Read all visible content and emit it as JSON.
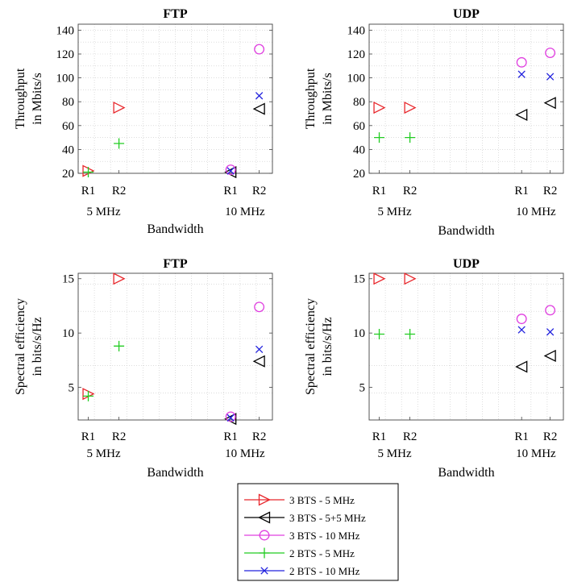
{
  "chart_data": [
    {
      "type": "scatter",
      "title": "FTP",
      "ylabel": [
        "Throughput",
        "in Mbits/s"
      ],
      "xlabel": "Bandwidth",
      "ylim": [
        20,
        145
      ],
      "yticks": [
        20,
        40,
        60,
        80,
        100,
        120,
        140
      ],
      "x_ticks": [
        "R1",
        "R2",
        "R1",
        "R2"
      ],
      "x_groups": [
        "5 MHz",
        "10 MHz"
      ],
      "grid": "dotted",
      "series": [
        {
          "name": "3 BTS - 5 MHz",
          "points": [
            {
              "x": "5 MHz R1",
              "y": 22
            },
            {
              "x": "5 MHz R2",
              "y": 75
            }
          ]
        },
        {
          "name": "3 BTS - 5+5 MHz",
          "points": [
            {
              "x": "10 MHz R1",
              "y": 21
            },
            {
              "x": "10 MHz R2",
              "y": 74
            }
          ]
        },
        {
          "name": "3 BTS - 10 MHz",
          "points": [
            {
              "x": "10 MHz R1",
              "y": 23
            },
            {
              "x": "10 MHz R2",
              "y": 124
            }
          ]
        },
        {
          "name": "2 BTS - 5 MHz",
          "points": [
            {
              "x": "5 MHz R1",
              "y": 21
            },
            {
              "x": "5 MHz R2",
              "y": 45
            }
          ]
        },
        {
          "name": "2 BTS - 10 MHz",
          "points": [
            {
              "x": "10 MHz R1",
              "y": 22
            },
            {
              "x": "10 MHz R2",
              "y": 85
            }
          ]
        }
      ]
    },
    {
      "type": "scatter",
      "title": "UDP",
      "ylabel": [
        "Throughput",
        "in Mbits/s"
      ],
      "xlabel": "Bandwidth",
      "ylim": [
        20,
        145
      ],
      "yticks": [
        20,
        40,
        60,
        80,
        100,
        120,
        140
      ],
      "x_ticks": [
        "R1",
        "R2",
        "R1",
        "R2"
      ],
      "x_groups": [
        "5 MHz",
        "10 MHz"
      ],
      "grid": "dotted",
      "series": [
        {
          "name": "3 BTS - 5 MHz",
          "points": [
            {
              "x": "5 MHz R1",
              "y": 75
            },
            {
              "x": "5 MHz R2",
              "y": 75
            }
          ]
        },
        {
          "name": "3 BTS - 5+5 MHz",
          "points": [
            {
              "x": "10 MHz R1",
              "y": 69
            },
            {
              "x": "10 MHz R2",
              "y": 79
            }
          ]
        },
        {
          "name": "3 BTS - 10 MHz",
          "points": [
            {
              "x": "10 MHz R1",
              "y": 113
            },
            {
              "x": "10 MHz R2",
              "y": 121
            }
          ]
        },
        {
          "name": "2 BTS - 5 MHz",
          "points": [
            {
              "x": "5 MHz R1",
              "y": 50
            },
            {
              "x": "5 MHz R2",
              "y": 50
            }
          ]
        },
        {
          "name": "2 BTS - 10 MHz",
          "points": [
            {
              "x": "10 MHz R1",
              "y": 103
            },
            {
              "x": "10 MHz R2",
              "y": 101
            }
          ]
        }
      ]
    },
    {
      "type": "scatter",
      "title": "FTP",
      "ylabel": [
        "Spectral efficiency",
        "in bits/s/Hz"
      ],
      "xlabel": "Bandwidth",
      "ylim": [
        2,
        15.5
      ],
      "yticks": [
        5,
        10,
        15
      ],
      "x_ticks": [
        "R1",
        "R2",
        "R1",
        "R2"
      ],
      "x_groups": [
        "5 MHz",
        "10 MHz"
      ],
      "grid": "dotted",
      "series": [
        {
          "name": "3 BTS - 5 MHz",
          "points": [
            {
              "x": "5 MHz R1",
              "y": 4.4
            },
            {
              "x": "5 MHz R2",
              "y": 15
            }
          ]
        },
        {
          "name": "3 BTS - 5+5 MHz",
          "points": [
            {
              "x": "10 MHz R1",
              "y": 2.1
            },
            {
              "x": "10 MHz R2",
              "y": 7.4
            }
          ]
        },
        {
          "name": "3 BTS - 10 MHz",
          "points": [
            {
              "x": "10 MHz R1",
              "y": 2.3
            },
            {
              "x": "10 MHz R2",
              "y": 12.4
            }
          ]
        },
        {
          "name": "2 BTS - 5 MHz",
          "points": [
            {
              "x": "5 MHz R1",
              "y": 4.2
            },
            {
              "x": "5 MHz R2",
              "y": 8.8
            }
          ]
        },
        {
          "name": "2 BTS - 10 MHz",
          "points": [
            {
              "x": "10 MHz R1",
              "y": 2.2
            },
            {
              "x": "10 MHz R2",
              "y": 8.5
            }
          ]
        }
      ]
    },
    {
      "type": "scatter",
      "title": "UDP",
      "ylabel": [
        "Spectral efficiency",
        "in bits/s/Hz"
      ],
      "xlabel": "Bandwidth",
      "ylim": [
        2,
        15.5
      ],
      "yticks": [
        5,
        10,
        15
      ],
      "x_ticks": [
        "R1",
        "R2",
        "R1",
        "R2"
      ],
      "x_groups": [
        "5 MHz",
        "10 MHz"
      ],
      "grid": "dotted",
      "series": [
        {
          "name": "3 BTS - 5 MHz",
          "points": [
            {
              "x": "5 MHz R1",
              "y": 15
            },
            {
              "x": "5 MHz R2",
              "y": 15
            }
          ]
        },
        {
          "name": "3 BTS - 5+5 MHz",
          "points": [
            {
              "x": "10 MHz R1",
              "y": 6.9
            },
            {
              "x": "10 MHz R2",
              "y": 7.9
            }
          ]
        },
        {
          "name": "3 BTS - 10 MHz",
          "points": [
            {
              "x": "10 MHz R1",
              "y": 11.3
            },
            {
              "x": "10 MHz R2",
              "y": 12.1
            }
          ]
        },
        {
          "name": "2 BTS - 5 MHz",
          "points": [
            {
              "x": "5 MHz R1",
              "y": 9.9
            },
            {
              "x": "5 MHz R2",
              "y": 9.9
            }
          ]
        },
        {
          "name": "2 BTS - 10 MHz",
          "points": [
            {
              "x": "10 MHz R1",
              "y": 10.3
            },
            {
              "x": "10 MHz R2",
              "y": 10.1
            }
          ]
        }
      ]
    }
  ],
  "legend": {
    "placement": "bottom-center",
    "entries": [
      {
        "label": "3 BTS - 5 MHz",
        "marker": "triangle-right",
        "color": "#e8262b"
      },
      {
        "label": "3 BTS - 5+5 MHz",
        "marker": "triangle-left",
        "color": "#000000"
      },
      {
        "label": "3 BTS - 10 MHz",
        "marker": "circle",
        "color": "#e040e0"
      },
      {
        "label": "2 BTS - 5 MHz",
        "marker": "plus",
        "color": "#22cc22"
      },
      {
        "label": "2 BTS - 10 MHz",
        "marker": "x",
        "color": "#2222dd"
      }
    ]
  }
}
